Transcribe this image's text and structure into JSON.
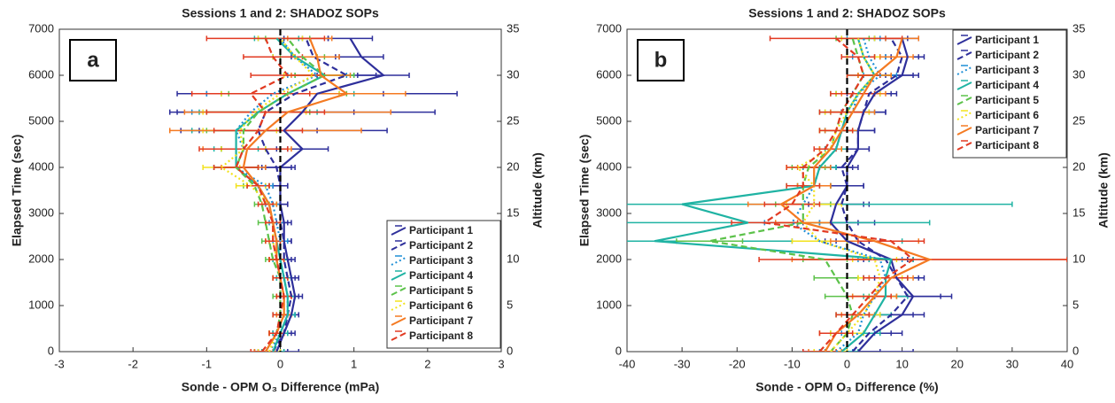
{
  "chart_data": [
    {
      "type": "line",
      "title": "Sessions 1 and 2: SHADOZ SOPs",
      "panel_label": "a",
      "xlabel": "Sonde - OPM O₃ Difference (mPa)",
      "ylabel": "Elapsed Time (sec)",
      "y2label": "Altitude (km)",
      "xlim": [
        -3,
        3
      ],
      "xticks": [
        -3,
        -2,
        -1,
        0,
        1,
        2,
        3
      ],
      "ylim": [
        0,
        7000
      ],
      "yticks": [
        0,
        1000,
        2000,
        3000,
        4000,
        5000,
        6000,
        7000
      ],
      "y2lim": [
        0,
        35
      ],
      "y2ticks": [
        0,
        5,
        10,
        15,
        20,
        25,
        30,
        35
      ],
      "reference_line": 0,
      "legend": "lower right",
      "y": [
        0,
        400,
        800,
        1200,
        1600,
        2000,
        2400,
        2800,
        3200,
        3600,
        4000,
        4400,
        4800,
        5200,
        5600,
        6000,
        6400,
        6800
      ],
      "series": [
        {
          "name": "Participant 1",
          "color": "#2e2f9b",
          "style": "solid",
          "values": [
            -0.05,
            0.05,
            0.15,
            0.2,
            0.15,
            0.1,
            0.05,
            0.05,
            0,
            0,
            0,
            0.3,
            0.05,
            0.3,
            0.5,
            1.4,
            1.1,
            0.95
          ],
          "errors": [
            0.3,
            0.15,
            0.1,
            0.1,
            0.1,
            0.1,
            0.1,
            0.1,
            0.1,
            0.1,
            0.2,
            0.35,
            1.4,
            1.8,
            1.9,
            0.35,
            0.3,
            0.3
          ]
        },
        {
          "name": "Participant 2",
          "color": "#2e2f9b",
          "style": "dashed",
          "values": [
            -0.1,
            0.05,
            0.1,
            0.15,
            0.1,
            0.05,
            0.05,
            0,
            0,
            0,
            -0.05,
            -0.2,
            -0.3,
            -0.2,
            0.2,
            0.9,
            0.45,
            0.35
          ],
          "errors": [
            0.2,
            0.1,
            0.1,
            0.1,
            0.1,
            0.1,
            0.1,
            0.1,
            0.1,
            0.1,
            0.2,
            0.3,
            0.8,
            1.2,
            1.2,
            0.4,
            0.3,
            0.3
          ]
        },
        {
          "name": "Participant 3",
          "color": "#1f8fd6",
          "style": "dotted",
          "values": [
            -0.15,
            0,
            0.1,
            0.1,
            0.05,
            0,
            0,
            -0.05,
            -0.1,
            -0.2,
            -0.6,
            -0.5,
            -0.6,
            -0.4,
            -0.1,
            0.5,
            0.2,
            0
          ],
          "errors": [
            0.15,
            0.1,
            0.1,
            0.1,
            0.1,
            0.1,
            0.1,
            0.1,
            0.1,
            0.1,
            0.3,
            0.3,
            0.6,
            0.8,
            0.9,
            0.4,
            0.3,
            0.3
          ]
        },
        {
          "name": "Participant 4",
          "color": "#1fb3a3",
          "style": "solid",
          "values": [
            -0.1,
            0,
            0.1,
            0.1,
            0.05,
            0,
            -0.05,
            -0.1,
            -0.15,
            -0.3,
            -0.6,
            -0.6,
            -0.6,
            -0.3,
            0.1,
            0.6,
            0.2,
            -0.05
          ],
          "errors": [
            0.15,
            0.1,
            0.1,
            0.1,
            0.1,
            0.1,
            0.1,
            0.1,
            0.1,
            0.15,
            0.3,
            0.3,
            0.6,
            0.8,
            0.9,
            0.4,
            0.3,
            0.3
          ]
        },
        {
          "name": "Participant 5",
          "color": "#5cc24a",
          "style": "dashed",
          "values": [
            -0.2,
            -0.05,
            0,
            0,
            0,
            -0.1,
            -0.15,
            -0.2,
            -0.25,
            -0.35,
            -0.6,
            -0.5,
            -0.5,
            -0.3,
            0.1,
            0.6,
            0.3,
            0.1
          ],
          "errors": [
            0.15,
            0.1,
            0.1,
            0.1,
            0.1,
            0.1,
            0.1,
            0.1,
            0.1,
            0.15,
            0.3,
            0.3,
            0.5,
            0.7,
            0.8,
            0.4,
            0.3,
            0.3
          ]
        },
        {
          "name": "Participant 6",
          "color": "#f2e21d",
          "style": "dotted",
          "values": [
            -0.15,
            -0.05,
            0.05,
            0.05,
            0,
            -0.05,
            -0.1,
            -0.1,
            -0.15,
            -0.4,
            -0.8,
            -0.5,
            -0.55,
            -0.35,
            0,
            0.45,
            0.2,
            0
          ],
          "errors": [
            0.15,
            0.1,
            0.1,
            0.1,
            0.1,
            0.1,
            0.1,
            0.1,
            0.1,
            0.2,
            0.25,
            0.3,
            0.5,
            0.7,
            0.8,
            0.4,
            0.3,
            0.3
          ]
        },
        {
          "name": "Participant 7",
          "color": "#f47a22",
          "style": "solid",
          "values": [
            -0.2,
            -0.05,
            0.05,
            0.05,
            0,
            -0.05,
            -0.05,
            -0.1,
            -0.15,
            -0.3,
            -0.5,
            -0.45,
            -0.2,
            0.1,
            0.9,
            0.55,
            0.5,
            0.4
          ],
          "errors": [
            0.15,
            0.1,
            0.1,
            0.1,
            0.1,
            0.1,
            0.1,
            0.1,
            0.1,
            0.15,
            0.3,
            0.6,
            1.3,
            1.4,
            0.8,
            0.4,
            0.3,
            0.3
          ]
        },
        {
          "name": "Participant 8",
          "color": "#e23a22",
          "style": "dashed",
          "values": [
            -0.25,
            -0.05,
            0,
            0.05,
            0,
            -0.05,
            -0.1,
            -0.1,
            -0.2,
            -0.3,
            -0.6,
            -0.5,
            -0.3,
            -0.2,
            -0.4,
            0.1,
            -0.1,
            -0.2
          ],
          "errors": [
            0.15,
            0.1,
            0.1,
            0.1,
            0.1,
            0.1,
            0.1,
            0.1,
            0.1,
            0.15,
            0.3,
            0.6,
            0.6,
            0.8,
            0.8,
            0.5,
            0.4,
            0.8
          ]
        }
      ]
    },
    {
      "type": "line",
      "title": "Sessions 1 and 2: SHADOZ SOPs",
      "panel_label": "b",
      "xlabel": "Sonde - OPM O₃ Difference (%)",
      "ylabel": "Elapsed Time (sec)",
      "y2label": "Altitude (km)",
      "xlim": [
        -40,
        40
      ],
      "xticks": [
        -40,
        -30,
        -20,
        -10,
        0,
        10,
        20,
        30,
        40
      ],
      "ylim": [
        0,
        7000
      ],
      "yticks": [
        0,
        1000,
        2000,
        3000,
        4000,
        5000,
        6000,
        7000
      ],
      "y2lim": [
        0,
        35
      ],
      "y2ticks": [
        0,
        5,
        10,
        15,
        20,
        25,
        30,
        35
      ],
      "reference_line": 0,
      "legend": "upper right",
      "y": [
        0,
        400,
        800,
        1200,
        1600,
        2000,
        2400,
        2800,
        3200,
        3600,
        4000,
        4400,
        4800,
        5200,
        5600,
        6000,
        6400,
        6800
      ],
      "series": [
        {
          "name": "Participant 1",
          "color": "#2e2f9b",
          "style": "solid",
          "values": [
            2,
            5,
            10,
            12,
            9,
            8,
            0,
            -3,
            -2,
            0,
            0,
            2,
            2,
            3,
            5,
            10,
            11,
            10
          ],
          "errors": [
            10,
            5,
            4,
            7,
            5,
            4,
            4,
            5,
            5,
            3,
            2,
            2,
            3,
            4,
            4,
            3,
            3,
            3
          ]
        },
        {
          "name": "Participant 2",
          "color": "#2e2f9b",
          "style": "dashed",
          "values": [
            1,
            4,
            8,
            11,
            9,
            7,
            2,
            0,
            -1,
            0,
            -1,
            2,
            2,
            3,
            4,
            9,
            10,
            8
          ],
          "errors": [
            5,
            4,
            4,
            6,
            4,
            4,
            4,
            5,
            5,
            3,
            2,
            2,
            3,
            4,
            4,
            3,
            3,
            3
          ]
        },
        {
          "name": "Participant 3",
          "color": "#1f8fd6",
          "style": "dotted",
          "values": [
            -2,
            2,
            3,
            5,
            7,
            6,
            -5,
            -10,
            -8,
            -6,
            -5,
            -2,
            -1,
            1,
            2,
            6,
            4,
            3
          ],
          "errors": [
            3,
            3,
            3,
            4,
            4,
            4,
            5,
            5,
            5,
            3,
            3,
            2,
            3,
            4,
            4,
            3,
            3,
            3
          ]
        },
        {
          "name": "Participant 4",
          "color": "#1fb3a3",
          "style": "solid",
          "values": [
            -1,
            3,
            5,
            7,
            7,
            8,
            -35,
            -18,
            -30,
            -6,
            -5,
            -2,
            -1,
            0,
            2,
            5,
            3,
            2
          ],
          "errors": [
            3,
            3,
            3,
            4,
            4,
            4,
            45,
            33,
            60,
            3,
            3,
            2,
            3,
            4,
            4,
            3,
            3,
            3
          ]
        },
        {
          "name": "Participant 5",
          "color": "#5cc24a",
          "style": "dashed",
          "values": [
            -3,
            0,
            1,
            0,
            -2,
            -4,
            -25,
            -8,
            -8,
            -8,
            -7,
            -3,
            -2,
            -1,
            1,
            3,
            2,
            1
          ],
          "errors": [
            3,
            3,
            3,
            4,
            4,
            4,
            6,
            5,
            5,
            3,
            3,
            2,
            3,
            4,
            4,
            3,
            3,
            3
          ]
        },
        {
          "name": "Participant 6",
          "color": "#f2e21d",
          "style": "dotted",
          "values": [
            -3,
            0,
            3,
            5,
            6,
            5,
            -5,
            -8,
            -6,
            -6,
            -9,
            -3,
            -2,
            0,
            2,
            5,
            3,
            2
          ],
          "errors": [
            3,
            3,
            3,
            4,
            4,
            4,
            5,
            5,
            5,
            3,
            2,
            2,
            3,
            4,
            4,
            3,
            3,
            3
          ]
        },
        {
          "name": "Participant 7",
          "color": "#f47a22",
          "style": "solid",
          "values": [
            -4,
            -2,
            2,
            5,
            8,
            15,
            5,
            -8,
            -12,
            -6,
            -6,
            -3,
            -1,
            1,
            3,
            5,
            9,
            10
          ],
          "errors": [
            3,
            3,
            3,
            4,
            4,
            25,
            8,
            5,
            6,
            3,
            3,
            2,
            3,
            4,
            4,
            3,
            3,
            3
          ]
        },
        {
          "name": "Participant 8",
          "color": "#e23a22",
          "style": "dashed",
          "values": [
            -5,
            -2,
            1,
            4,
            7,
            12,
            8,
            -15,
            -10,
            -8,
            -8,
            -4,
            -2,
            -1,
            1,
            3,
            2,
            -2
          ],
          "errors": [
            3,
            3,
            3,
            4,
            4,
            28,
            6,
            6,
            5,
            3,
            3,
            2,
            3,
            4,
            4,
            3,
            3,
            12
          ]
        }
      ]
    }
  ]
}
